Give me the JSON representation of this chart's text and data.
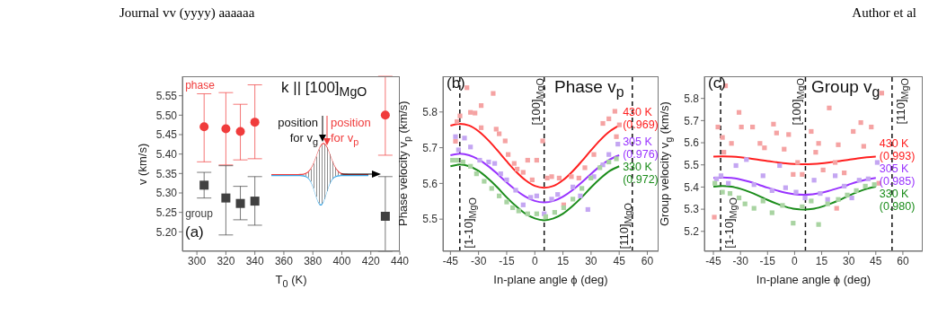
{
  "chart_data": [
    {
      "type": "other",
      "annotations": [
        "Journal vv (yyyy) aaaaaa",
        "Author et al"
      ]
    },
    {
      "type": "scatter",
      "title": "k || [100]$_{MgO}$",
      "xlabel": "T$_{0}$ (K)",
      "ylabel": "v (km/s)",
      "xlim": [
        290,
        440
      ],
      "xticks": [
        300,
        320,
        340,
        360,
        380,
        400,
        420,
        440
      ],
      "ylim": [
        5.15,
        5.6
      ],
      "yticks": [
        {
          "value": 5.2,
          "label": "5.20"
        },
        {
          "value": 5.25,
          "label": "5.25"
        },
        {
          "value": 5.3,
          "label": "5.30"
        },
        {
          "value": 5.35,
          "label": "5.35"
        },
        {
          "value": 5.4,
          "label": "5.40"
        },
        {
          "value": 5.45,
          "label": "5.45"
        },
        {
          "value": 5.5,
          "label": "5.50"
        },
        {
          "value": 5.55,
          "label": "5.55"
        }
      ],
      "annotations": [
        "(a)",
        "position for v$_{g}$",
        "position for v$_{p}$"
      ],
      "series": [
        {
          "name": "phase",
          "color": "#f03c3c",
          "marker": "circle",
          "x": [
            305,
            320,
            330,
            340,
            430
          ],
          "values": [
            5.47,
            5.465,
            5.458,
            5.482,
            5.5
          ],
          "errors": [
            [
              5.38,
              5.555
            ],
            [
              5.372,
              5.558
            ],
            [
              5.385,
              5.528
            ],
            [
              5.388,
              5.578
            ],
            [
              5.397,
              5.6
            ]
          ]
        },
        {
          "name": "group",
          "color": "#404040",
          "marker": "square",
          "x": [
            305,
            320,
            330,
            340,
            430
          ],
          "values": [
            5.32,
            5.287,
            5.273,
            5.279,
            5.24
          ],
          "errors": [
            [
              5.287,
              5.353
            ],
            [
              5.192,
              5.37
            ],
            [
              5.231,
              5.317
            ],
            [
              5.217,
              5.342
            ],
            [
              5.15,
              5.342
            ]
          ]
        }
      ]
    },
    {
      "type": "scatter",
      "title": "Phase v$_{p}$",
      "xlabel": "In-plane angle ϕ (deg)",
      "ylabel": "Phase velocity v$_{p}$ (km/s)",
      "xlim": [
        -49,
        66
      ],
      "xticks": [
        -45,
        -30,
        -15,
        0,
        15,
        30,
        45,
        60
      ],
      "ylim": [
        5.41,
        5.9
      ],
      "yticks": [
        5.5,
        5.6,
        5.7,
        5.8
      ],
      "annotations": [
        "(b)"
      ],
      "ref_lines": [
        {
          "axis": "x",
          "value": -40,
          "label": "[1-10]$_{MgO}$",
          "line_style": "dashed"
        },
        {
          "axis": "x",
          "value": 5,
          "label": "[100]$_{MgO}$",
          "line_style": "dashed"
        },
        {
          "axis": "x",
          "value": 52,
          "label": "[110]$_{MgO}$",
          "line_style": "dashed"
        }
      ],
      "series": [
        {
          "type": "scatter",
          "color": "#f5a3a3",
          "marker": "square",
          "x": [
            -42.3,
            -41.5,
            -39.9,
            -36.2,
            -34.3,
            -31.9,
            -28.6,
            -28.6,
            -22.2,
            -20.6,
            -19,
            -15.8,
            -14.2,
            -11,
            -9.4,
            -6.2,
            -3.8,
            -1.4,
            1,
            4.2,
            6.6,
            9,
            13,
            15.4,
            19.5,
            23.5,
            26.7,
            31.5,
            36.3,
            39.5,
            42.7,
            43.5,
            45.1
          ],
          "values": [
            5.718,
            5.773,
            5.789,
            5.868,
            5.799,
            5.797,
            5.818,
            5.756,
            5.852,
            5.752,
            5.739,
            5.719,
            5.681,
            5.656,
            5.64,
            5.631,
            5.665,
            5.61,
            5.665,
            5.719,
            5.615,
            5.619,
            5.615,
            5.54,
            5.619,
            5.615,
            5.644,
            5.681,
            5.768,
            5.781,
            5.802,
            5.731,
            5.764
          ]
        },
        {
          "type": "scatter",
          "color": "#c4a6f2",
          "marker": "square",
          "x": [
            -42.3,
            -40.7,
            -37.5,
            -34.3,
            -29.4,
            -24.6,
            -21.4,
            -18.2,
            -15,
            -10.2,
            -6.2,
            -2.2,
            1,
            5,
            9,
            12.2,
            15.4,
            20.3,
            24.3,
            28.3,
            31.5,
            36.3,
            39.5,
            44.3
          ],
          "values": [
            5.731,
            5.694,
            5.727,
            5.702,
            5.665,
            5.66,
            5.656,
            5.627,
            5.61,
            5.581,
            5.54,
            5.561,
            5.565,
            5.515,
            5.556,
            5.569,
            null,
            5.59,
            5.565,
            5.527,
            5.619,
            5.652,
            5.681,
            5.71
          ]
        },
        {
          "type": "scatter",
          "color": "#a9d4a2",
          "marker": "square",
          "x": [
            -43.9,
            -41.5,
            -38.3,
            -34.3,
            -31.1,
            -27,
            -23,
            -19,
            -15,
            -11.8,
            -8.6,
            -3.8,
            1,
            5.8,
            10.6,
            15.4,
            20.3,
            25.1,
            29.9,
            34.7,
            39.5,
            43.5
          ],
          "values": [
            5.665,
            5.665,
            5.66,
            5.648,
            5.627,
            5.606,
            5.586,
            5.565,
            5.548,
            5.532,
            5.523,
            5.515,
            5.515,
            5.507,
            5.519,
            5.532,
            5.556,
            5.586,
            5.615,
            5.644,
            5.66,
            5.669
          ]
        },
        {
          "type": "line",
          "name": "430 K (0.969)",
          "color": "#ff1f1f",
          "x": [
            -45,
            -40,
            -35,
            -30,
            -25,
            -20,
            -15,
            -10,
            -5,
            0,
            5,
            10,
            15,
            20,
            25,
            30,
            35,
            40,
            45
          ],
          "values": [
            5.762,
            5.767,
            5.762,
            5.746,
            5.722,
            5.693,
            5.662,
            5.633,
            5.609,
            5.593,
            5.588,
            5.593,
            5.609,
            5.633,
            5.662,
            5.693,
            5.722,
            5.746,
            5.762
          ]
        },
        {
          "type": "line",
          "name": "305 K (0.976)",
          "color": "#9933ff",
          "x": [
            -45,
            -40,
            -35,
            -30,
            -25,
            -20,
            -15,
            -10,
            -5,
            0,
            5,
            10,
            15,
            20,
            25,
            30,
            35,
            40,
            45
          ],
          "values": [
            5.679,
            5.683,
            5.679,
            5.667,
            5.649,
            5.627,
            5.603,
            5.581,
            5.563,
            5.551,
            5.547,
            5.551,
            5.563,
            5.581,
            5.603,
            5.627,
            5.649,
            5.667,
            5.679
          ]
        },
        {
          "type": "line",
          "name": "330 K (0.972)",
          "color": "#1a8c1a",
          "x": [
            -45,
            -40,
            -35,
            -30,
            -25,
            -20,
            -15,
            -10,
            -5,
            0,
            5,
            10,
            15,
            20,
            25,
            30,
            35,
            40,
            45
          ],
          "values": [
            5.648,
            5.653,
            5.648,
            5.635,
            5.614,
            5.589,
            5.561,
            5.536,
            5.515,
            5.502,
            5.497,
            5.502,
            5.515,
            5.536,
            5.561,
            5.589,
            5.614,
            5.635,
            5.648
          ]
        }
      ]
    },
    {
      "type": "scatter",
      "title": "Group v$_{g}$",
      "xlabel": "In-plane angle ϕ (deg)",
      "ylabel": "Group velocity v$_{g}$ (km/s)",
      "xlim": [
        -50,
        71
      ],
      "xticks": [
        -45,
        -30,
        -15,
        0,
        15,
        30,
        45,
        60
      ],
      "ylim": [
        5.11,
        5.9
      ],
      "yticks": [
        5.2,
        5.3,
        5.4,
        5.5,
        5.6,
        5.7,
        5.8
      ],
      "annotations": [
        "(c)"
      ],
      "ref_lines": [
        {
          "axis": "x",
          "value": -41,
          "label": "[1-10]$_{MgO}$",
          "line_style": "dashed"
        },
        {
          "axis": "x",
          "value": 6,
          "label": "[100]$_{MgO}$",
          "line_style": "dashed"
        },
        {
          "axis": "x",
          "value": 54,
          "label": "[110]$_{MgO}$",
          "line_style": "dashed"
        }
      ],
      "series": [
        {
          "type": "scatter",
          "color": "#f5a3a3",
          "marker": "square",
          "x": [
            -44.5,
            -42.5,
            -40,
            -39.2,
            -38.3,
            -35,
            -30.8,
            -29.5,
            -23.3,
            -19.2,
            -16.7,
            -11.7,
            -10,
            -5.8,
            -3.3,
            -0.8,
            1.7,
            4.2,
            9.2,
            11.7,
            13.3,
            15.8,
            19.2,
            22.5,
            23.3,
            24.2,
            27.5,
            32.5,
            36.7,
            38.3,
            42.5,
            46.7,
            48.3
          ],
          "values": [
            5.264,
            5.671,
            5.624,
            5.557,
            5.857,
            5.597,
            5.737,
            5.671,
            5.671,
            5.597,
            5.577,
            5.684,
            5.644,
            5.571,
            5.637,
            5.457,
            5.511,
            5.457,
            5.651,
            5.557,
            5.597,
            5.477,
            5.757,
            5.511,
            5.304,
            5.591,
            5.464,
            5.651,
            5.691,
            5.584,
            5.671,
            5.417,
            5.824
          ]
        },
        {
          "type": "scatter",
          "color": "#c4a6f2",
          "marker": "square",
          "x": [
            -43.3,
            -40.8,
            -36.7,
            -32.5,
            -26.7,
            -22.5,
            -17.5,
            -12.5,
            -8.3,
            -5,
            0.8,
            5.8,
            10.8,
            14.2,
            18.3,
            22.5,
            27.5,
            31.7,
            35.8,
            40.8,
            45.8
          ],
          "values": [
            5.437,
            5.451,
            5.417,
            5.497,
            5.524,
            5.411,
            5.451,
            5.384,
            5.497,
            5.397,
            5.377,
            5.351,
            5.431,
            5.371,
            5.344,
            5.451,
            5.404,
            5.351,
            5.431,
            5.437,
            5.511
          ]
        },
        {
          "type": "scatter",
          "color": "#a9d4a2",
          "marker": "square",
          "x": [
            -44.2,
            -40,
            -35.8,
            -30.8,
            -27.5,
            -22.5,
            -17.5,
            -12.5,
            -6.7,
            -0.8,
            4.2,
            9.2,
            13.3,
            18.3,
            24.2,
            29.2,
            34.2,
            39.2,
            44.2
          ],
          "values": [
            5.417,
            5.377,
            5.371,
            5.351,
            5.324,
            5.304,
            5.337,
            5.284,
            5.317,
            5.237,
            5.311,
            5.337,
            5.231,
            5.324,
            5.344,
            5.364,
            5.384,
            5.404,
            5.411
          ]
        },
        {
          "type": "line",
          "name": "430 K (0.993)",
          "color": "#ff1f1f",
          "x": [
            -45,
            -40,
            -35,
            -30,
            -25,
            -20,
            -15,
            -10,
            -5,
            0,
            5,
            10,
            15,
            20,
            25,
            30,
            35,
            40,
            45
          ],
          "values": [
            5.537,
            5.538,
            5.537,
            5.534,
            5.529,
            5.523,
            5.517,
            5.512,
            5.507,
            5.504,
            5.503,
            5.504,
            5.507,
            5.512,
            5.517,
            5.523,
            5.529,
            5.534,
            5.537
          ]
        },
        {
          "type": "line",
          "name": "305 K (0.985)",
          "color": "#9933ff",
          "x": [
            -45,
            -40,
            -35,
            -30,
            -25,
            -20,
            -15,
            -10,
            -5,
            0,
            5,
            10,
            15,
            20,
            25,
            30,
            35,
            40,
            45
          ],
          "values": [
            5.441,
            5.443,
            5.441,
            5.434,
            5.424,
            5.411,
            5.397,
            5.385,
            5.374,
            5.367,
            5.365,
            5.367,
            5.374,
            5.385,
            5.397,
            5.411,
            5.424,
            5.434,
            5.441
          ]
        },
        {
          "type": "line",
          "name": "330 K (0.980)",
          "color": "#1a8c1a",
          "x": [
            -45,
            -40,
            -35,
            -30,
            -25,
            -20,
            -15,
            -10,
            -5,
            0,
            5,
            10,
            15,
            20,
            25,
            30,
            35,
            40,
            45
          ],
          "values": [
            5.402,
            5.405,
            5.402,
            5.392,
            5.378,
            5.361,
            5.342,
            5.325,
            5.311,
            5.301,
            5.298,
            5.301,
            5.311,
            5.325,
            5.342,
            5.361,
            5.378,
            5.392,
            5.402
          ]
        }
      ]
    }
  ]
}
